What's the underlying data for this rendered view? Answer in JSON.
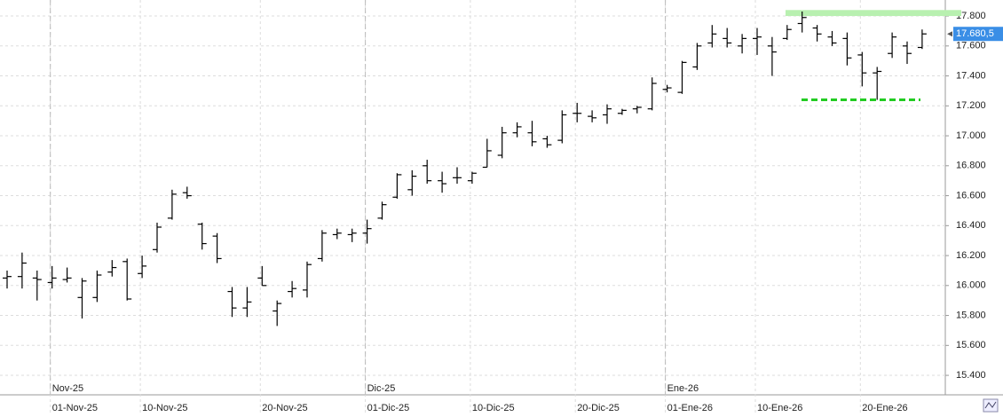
{
  "chart_data": {
    "type": "ohlc",
    "color": "#000000",
    "ylim": [
      15270,
      17907
    ],
    "yticks": [
      {
        "value": 15400,
        "label": "15.400"
      },
      {
        "value": 15600,
        "label": "15.600"
      },
      {
        "value": 15800,
        "label": "15.800"
      },
      {
        "value": 16000,
        "label": "16.000"
      },
      {
        "value": 16200,
        "label": "16.200"
      },
      {
        "value": 16400,
        "label": "16.400"
      },
      {
        "value": 16600,
        "label": "16.600"
      },
      {
        "value": 16800,
        "label": "16.800"
      },
      {
        "value": 17000,
        "label": "17.000"
      },
      {
        "value": 17200,
        "label": "17.200"
      },
      {
        "value": 17400,
        "label": "17.400"
      },
      {
        "value": 17600,
        "label": "17.600"
      },
      {
        "value": 17800,
        "label": "17.800"
      }
    ],
    "grid": true,
    "categories": [
      null,
      null,
      null,
      "01-Nov-25",
      null,
      null,
      null,
      null,
      null,
      "10-Nov-25",
      null,
      null,
      null,
      null,
      null,
      null,
      null,
      "20-Nov-25",
      null,
      null,
      null,
      null,
      null,
      null,
      "01-Dic-25",
      null,
      null,
      null,
      null,
      null,
      null,
      "10-Dic-25",
      null,
      null,
      null,
      null,
      null,
      null,
      "20-Dic-25",
      null,
      null,
      null,
      null,
      null,
      "01-Ene-26",
      null,
      null,
      null,
      null,
      null,
      "10-Ene-26",
      null,
      null,
      null,
      null,
      null,
      null,
      "20-Ene-26",
      null,
      null,
      null,
      null
    ],
    "month_labels": [
      null,
      null,
      null,
      "Nov-25",
      null,
      null,
      null,
      null,
      null,
      null,
      null,
      null,
      null,
      null,
      null,
      null,
      null,
      null,
      null,
      null,
      null,
      null,
      null,
      null,
      "Dic-25",
      null,
      null,
      null,
      null,
      null,
      null,
      null,
      null,
      null,
      null,
      null,
      null,
      null,
      null,
      null,
      null,
      null,
      null,
      null,
      "Ene-26",
      null,
      null,
      null,
      null,
      null,
      null,
      null,
      null,
      null,
      null,
      null,
      null,
      null,
      null,
      null,
      null,
      null
    ],
    "open": [
      16050,
      16060,
      16050,
      16020,
      16040,
      15920,
      15920,
      16090,
      16160,
      16080,
      16240,
      16450,
      16620,
      16410,
      16330,
      15960,
      15850,
      16050,
      15830,
      15960,
      15970,
      16180,
      16340,
      16340,
      16350,
      16450,
      16590,
      16640,
      16800,
      16700,
      16720,
      16700,
      16790,
      16870,
      17020,
      17020,
      16980,
      16970,
      17150,
      17130,
      17140,
      17150,
      17180,
      17180,
      17310,
      17290,
      17460,
      17620,
      17650,
      17600,
      17650,
      17600,
      17650,
      17750,
      17720,
      17660,
      17650,
      17540,
      17420,
      17550,
      17600,
      17590
    ],
    "high": [
      16100,
      16220,
      16100,
      16130,
      16120,
      16050,
      16100,
      16170,
      16180,
      16200,
      16420,
      16640,
      16660,
      16420,
      16350,
      15990,
      15990,
      16130,
      15900,
      16030,
      16160,
      16370,
      16380,
      16380,
      16440,
      16560,
      16750,
      16770,
      16840,
      16760,
      16790,
      16760,
      16980,
      17060,
      17090,
      17100,
      17000,
      17170,
      17220,
      17170,
      17210,
      17180,
      17200,
      17390,
      17340,
      17500,
      17620,
      17740,
      17720,
      17680,
      17720,
      17660,
      17740,
      17830,
      17740,
      17700,
      17690,
      17560,
      17460,
      17690,
      17630,
      17710
    ],
    "low": [
      15980,
      15980,
      15900,
      15980,
      16020,
      15780,
      15890,
      16060,
      15900,
      16050,
      16220,
      16440,
      16580,
      16240,
      16150,
      15790,
      15790,
      16000,
      15730,
      15920,
      15920,
      16160,
      16310,
      16290,
      16280,
      16440,
      16580,
      16600,
      16680,
      16620,
      16680,
      16680,
      16790,
      16850,
      16990,
      16930,
      16920,
      16950,
      17090,
      17090,
      17080,
      17140,
      17150,
      17170,
      17290,
      17280,
      17440,
      17590,
      17590,
      17550,
      17540,
      17400,
      17640,
      17690,
      17630,
      17600,
      17470,
      17330,
      17240,
      17520,
      17480,
      17580
    ],
    "close": [
      16060,
      16150,
      16040,
      16050,
      16050,
      16030,
      16070,
      16120,
      15910,
      16130,
      16390,
      16610,
      16600,
      16280,
      16180,
      15850,
      15890,
      16000,
      15880,
      15980,
      16140,
      16350,
      16350,
      16350,
      16380,
      16540,
      16740,
      16730,
      16700,
      16680,
      16720,
      16750,
      16900,
      17020,
      17060,
      16960,
      16940,
      17140,
      17150,
      17120,
      17180,
      17170,
      17190,
      17350,
      17320,
      17490,
      17600,
      17680,
      17620,
      17650,
      17660,
      17560,
      17710,
      17790,
      17680,
      17620,
      17520,
      17420,
      17430,
      17660,
      17550,
      17680.5
    ],
    "last_price": {
      "value": 17680.5,
      "label": "17.680,5",
      "color": "#3a8ee6"
    },
    "resistance_band": {
      "range": [
        17800,
        17840
      ],
      "color": "#b8f0b0"
    },
    "support_line": {
      "value": 17240,
      "color": "#22cc22"
    }
  }
}
